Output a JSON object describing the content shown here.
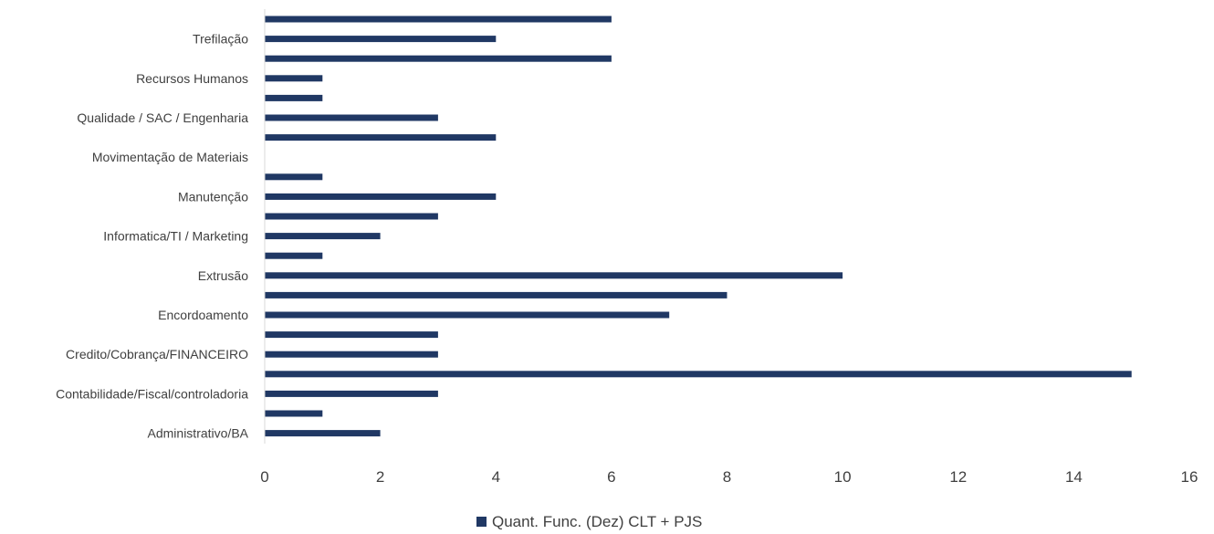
{
  "chart_data": {
    "type": "bar",
    "orientation": "horizontal",
    "title": "",
    "xlabel": "",
    "ylabel": "",
    "xlim": [
      0,
      16
    ],
    "x_ticks": [
      "0",
      "2",
      "4",
      "6",
      "8",
      "10",
      "12",
      "14",
      "16"
    ],
    "grid": false,
    "legend": "bottom-center",
    "categories": [
      "",
      "Trefilação",
      "",
      "Recursos Humanos",
      "",
      "Qualidade / SAC / Engenharia",
      "",
      "Movimentação de Materiais",
      "",
      "Manutenção",
      "",
      "Informatica/TI / Marketing",
      "",
      "Extrusão",
      "",
      "Encordoamento",
      "",
      "Credito/Cobrança/FINANCEIRO",
      "",
      "Contabilidade/Fiscal/controladoria",
      "",
      "Administrativo/BA"
    ],
    "series": [
      {
        "name": "Quant. Func. (Dez) CLT + PJS",
        "color": "#203864",
        "values": [
          6,
          4,
          6,
          1,
          1,
          3,
          4,
          0,
          1,
          4,
          3,
          2,
          1,
          10,
          8,
          7,
          3,
          3,
          15,
          3,
          1,
          2
        ]
      }
    ]
  }
}
